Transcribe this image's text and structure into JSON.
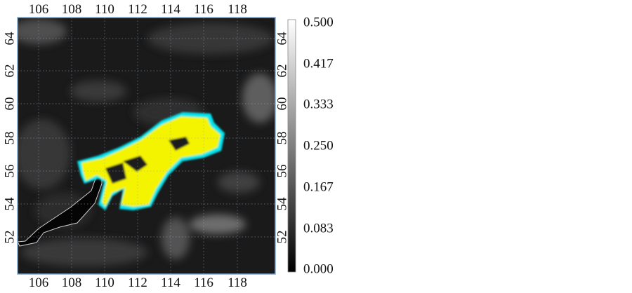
{
  "map": {
    "lon_ticks": [
      "106",
      "108",
      "110",
      "112",
      "114",
      "116",
      "118"
    ],
    "lat_ticks": [
      "64",
      "62",
      "60",
      "58",
      "56",
      "54",
      "52"
    ],
    "lon_range": [
      104.7,
      120.2
    ],
    "lat_range": [
      49.7,
      65.3
    ],
    "gridlines": "dotted",
    "overlay_colors": {
      "high": "#ffff00",
      "edge": "#00e5f0",
      "lake_outline": "#cfcfcf",
      "frame": "#7aa6d6"
    }
  },
  "colorbar": {
    "ticks": [
      "0.500",
      "0.417",
      "0.333",
      "0.250",
      "0.167",
      "0.083",
      "0.000"
    ],
    "range": [
      0.0,
      0.5
    ],
    "colormap": "grayscale"
  }
}
